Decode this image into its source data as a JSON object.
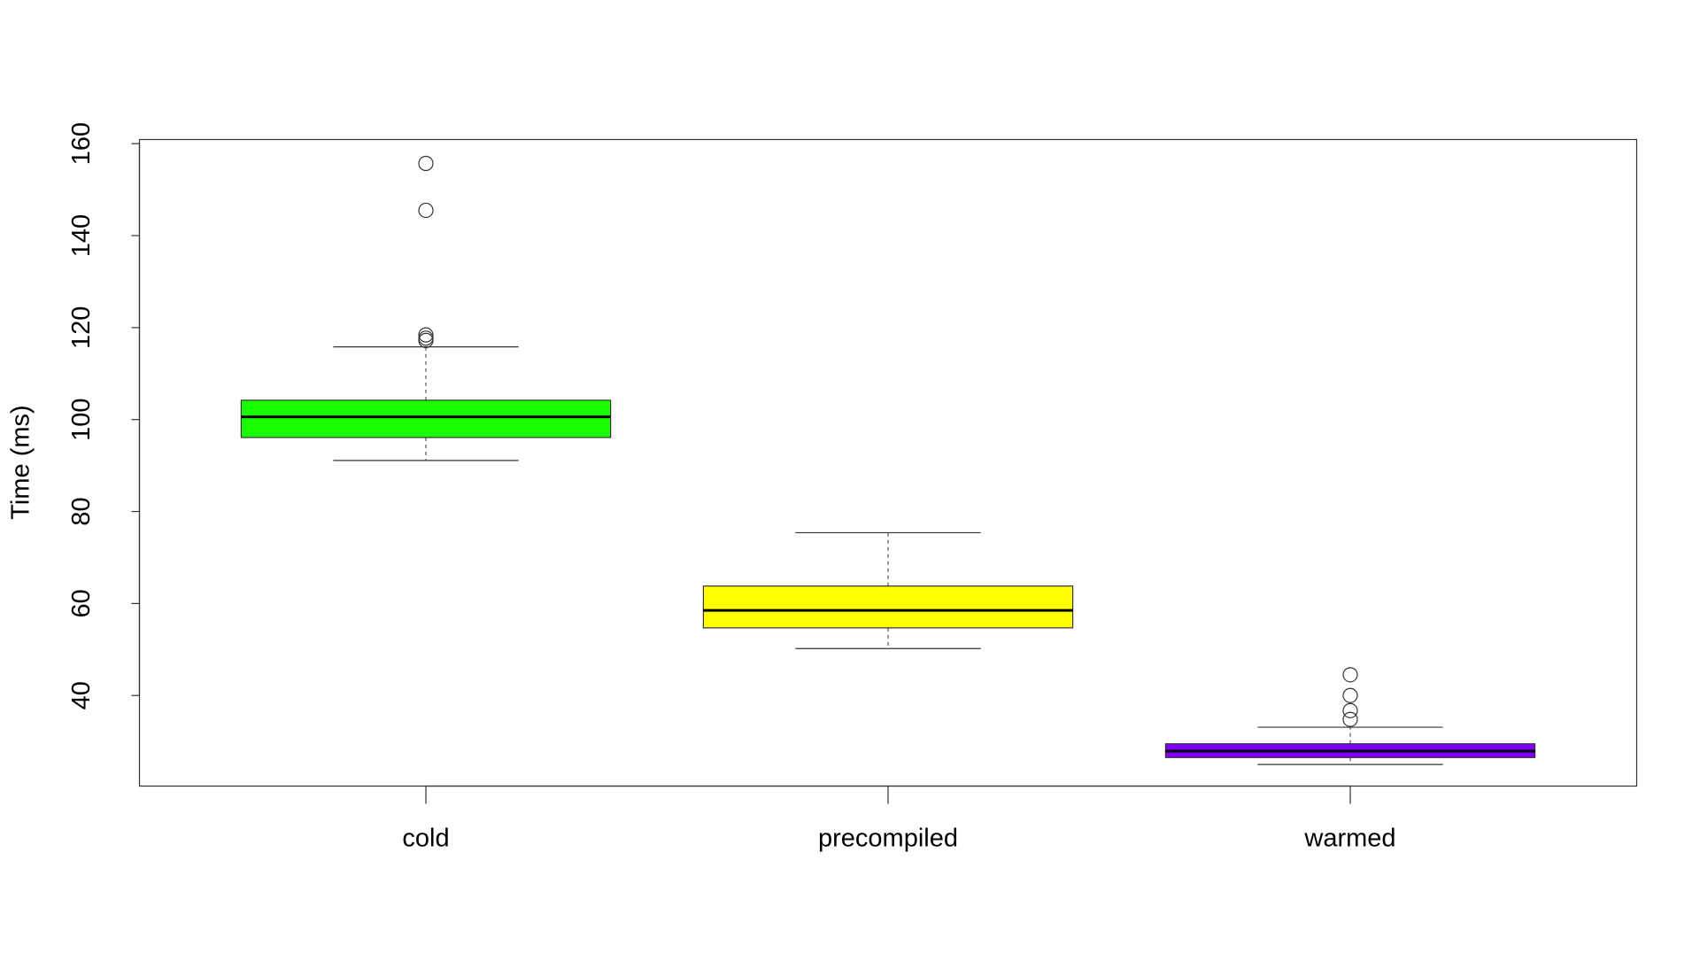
{
  "chart_data": {
    "type": "box",
    "y_label": "Time (ms)",
    "categories": [
      "cold",
      "precompiled",
      "warmed"
    ],
    "colors": [
      "#1aff00",
      "#ffff00",
      "#8000ff"
    ],
    "boxes": [
      {
        "whisker_low": 91.1,
        "q1": 96.1,
        "median": 100.6,
        "q3": 104.2,
        "whisker_high": 115.8,
        "outliers": [
          155.7,
          145.5,
          118.4,
          117.7,
          117.2
        ]
      },
      {
        "whisker_low": 50.2,
        "q1": 54.7,
        "median": 58.5,
        "q3": 63.8,
        "whisker_high": 75.4,
        "outliers": []
      },
      {
        "whisker_low": 25.0,
        "q1": 26.5,
        "median": 27.9,
        "q3": 29.5,
        "whisker_high": 33.1,
        "outliers": [
          44.5,
          40,
          36.7,
          34.8
        ]
      }
    ],
    "ylim": [
      20.3,
      160.9
    ],
    "yticks": [
      40,
      60,
      80,
      100,
      120,
      140,
      160
    ]
  }
}
